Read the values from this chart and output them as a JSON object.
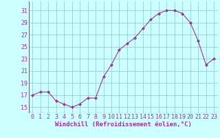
{
  "x": [
    0,
    1,
    2,
    3,
    4,
    5,
    6,
    7,
    8,
    9,
    10,
    11,
    12,
    13,
    14,
    15,
    16,
    17,
    18,
    19,
    20,
    21,
    22,
    23
  ],
  "y": [
    17,
    17.5,
    17.5,
    16,
    15.5,
    15,
    15.5,
    16.5,
    16.5,
    20,
    22,
    24.5,
    25.5,
    26.5,
    28,
    29.5,
    30.5,
    31,
    31,
    30.5,
    29,
    26,
    22,
    23
  ],
  "line_color": "#993399",
  "marker": "D",
  "marker_size": 2.0,
  "bg_color": "#ccffff",
  "grid_color": "#99cccc",
  "xlabel": "Windchill (Refroidissement éolien,°C)",
  "xlabel_color": "#993399",
  "xlabel_fontsize": 6.5,
  "tick_label_color": "#993399",
  "tick_fontsize": 6.0,
  "yticks": [
    15,
    17,
    19,
    21,
    23,
    25,
    27,
    29,
    31
  ],
  "xticks": [
    0,
    1,
    2,
    3,
    4,
    5,
    6,
    7,
    8,
    9,
    10,
    11,
    12,
    13,
    14,
    15,
    16,
    17,
    18,
    19,
    20,
    21,
    22,
    23
  ],
  "ylim": [
    14.0,
    32.5
  ],
  "xlim": [
    -0.5,
    23.5
  ]
}
